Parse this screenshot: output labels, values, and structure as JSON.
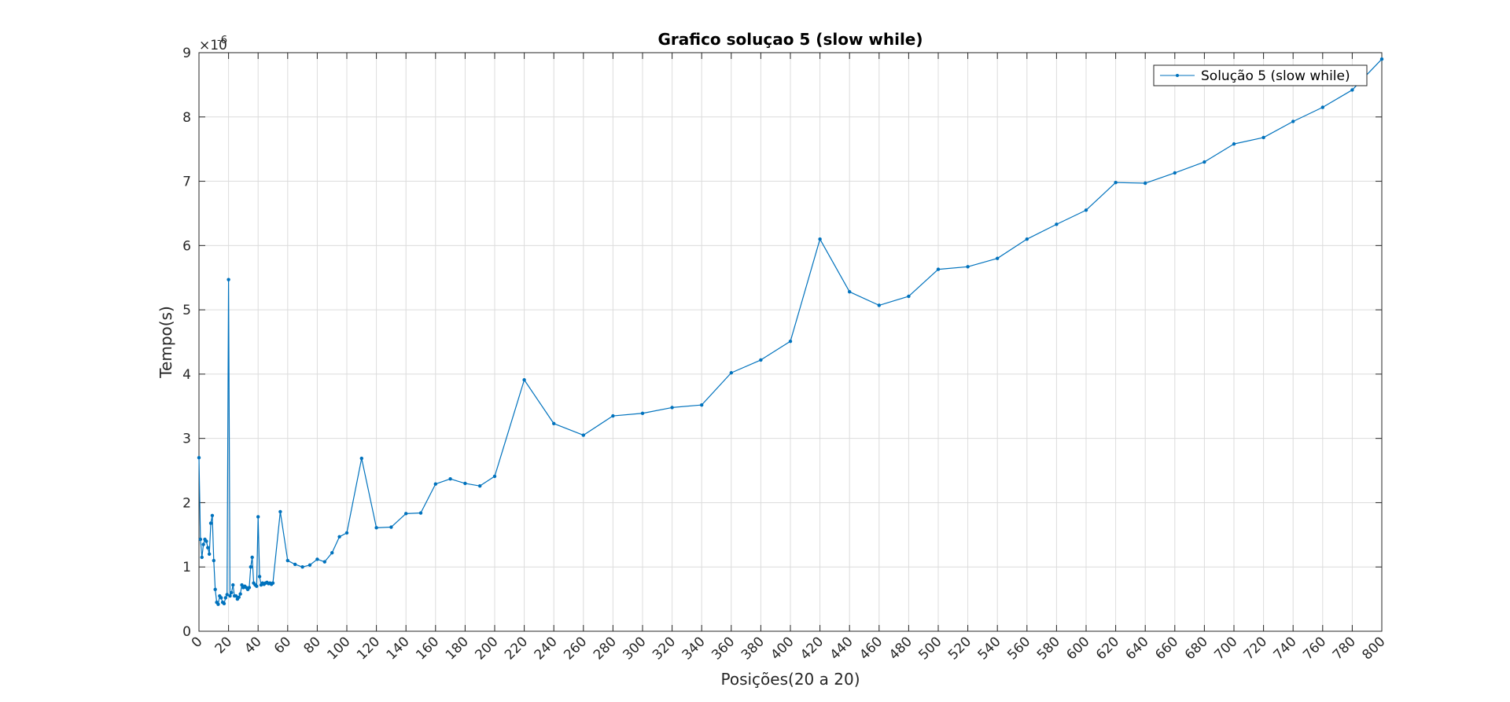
{
  "chart_data": {
    "type": "line",
    "title": "Grafico soluçao 5 (slow while)",
    "xlabel": "Posições(20 a 20)",
    "ylabel": "Tempo(s)",
    "y_exponent_label": "×10",
    "y_exponent": "-6",
    "xlim": [
      0,
      800
    ],
    "ylim": [
      0,
      9
    ],
    "x_ticks": [
      0,
      20,
      40,
      60,
      80,
      100,
      120,
      140,
      160,
      180,
      200,
      220,
      240,
      260,
      280,
      300,
      320,
      340,
      360,
      380,
      400,
      420,
      440,
      460,
      480,
      500,
      520,
      540,
      560,
      580,
      600,
      620,
      640,
      660,
      680,
      700,
      720,
      740,
      760,
      780,
      800
    ],
    "y_ticks": [
      0,
      1,
      2,
      3,
      4,
      5,
      6,
      7,
      8,
      9
    ],
    "grid": true,
    "legend_position": "top-right",
    "series_color": "#0072BD",
    "series": [
      {
        "name": "Solução 5 (slow while)",
        "x": [
          0,
          1,
          2,
          3,
          4,
          5,
          6,
          7,
          8,
          9,
          10,
          11,
          12,
          13,
          14,
          15,
          16,
          17,
          18,
          19,
          20,
          21,
          22,
          23,
          24,
          25,
          26,
          27,
          28,
          29,
          30,
          31,
          32,
          33,
          34,
          35,
          36,
          37,
          38,
          39,
          40,
          41,
          42,
          43,
          44,
          45,
          46,
          47,
          48,
          49,
          50,
          55,
          60,
          65,
          70,
          75,
          80,
          85,
          90,
          95,
          100,
          110,
          120,
          130,
          140,
          150,
          160,
          170,
          180,
          190,
          200,
          220,
          240,
          260,
          280,
          300,
          320,
          340,
          360,
          380,
          400,
          420,
          440,
          460,
          480,
          500,
          520,
          540,
          560,
          580,
          600,
          620,
          640,
          660,
          680,
          700,
          720,
          740,
          760,
          780,
          800
        ],
        "y": [
          2.7,
          1.43,
          1.15,
          1.35,
          1.43,
          1.4,
          1.3,
          1.2,
          1.68,
          1.8,
          1.1,
          0.65,
          0.45,
          0.42,
          0.55,
          0.52,
          0.45,
          0.43,
          0.52,
          0.57,
          5.47,
          0.55,
          0.6,
          0.72,
          0.55,
          0.55,
          0.5,
          0.53,
          0.58,
          0.72,
          0.68,
          0.7,
          0.68,
          0.65,
          0.68,
          1.0,
          1.15,
          0.75,
          0.72,
          0.7,
          1.78,
          0.85,
          0.72,
          0.75,
          0.73,
          0.75,
          0.76,
          0.74,
          0.75,
          0.73,
          0.75,
          1.86,
          1.1,
          1.04,
          1.0,
          1.03,
          1.12,
          1.08,
          1.22,
          1.47,
          1.53,
          2.69,
          1.61,
          1.62,
          1.83,
          1.84,
          2.29,
          2.37,
          2.3,
          2.26,
          2.41,
          3.91,
          3.23,
          3.05,
          3.35,
          3.39,
          3.48,
          3.52,
          4.02,
          4.22,
          4.51,
          6.1,
          5.28,
          5.07,
          5.21,
          5.63,
          5.67,
          5.8,
          6.1,
          6.33,
          6.55,
          6.98,
          6.97,
          7.13,
          7.3,
          7.58,
          7.68,
          7.93,
          8.15,
          8.42,
          8.9
        ]
      }
    ]
  }
}
